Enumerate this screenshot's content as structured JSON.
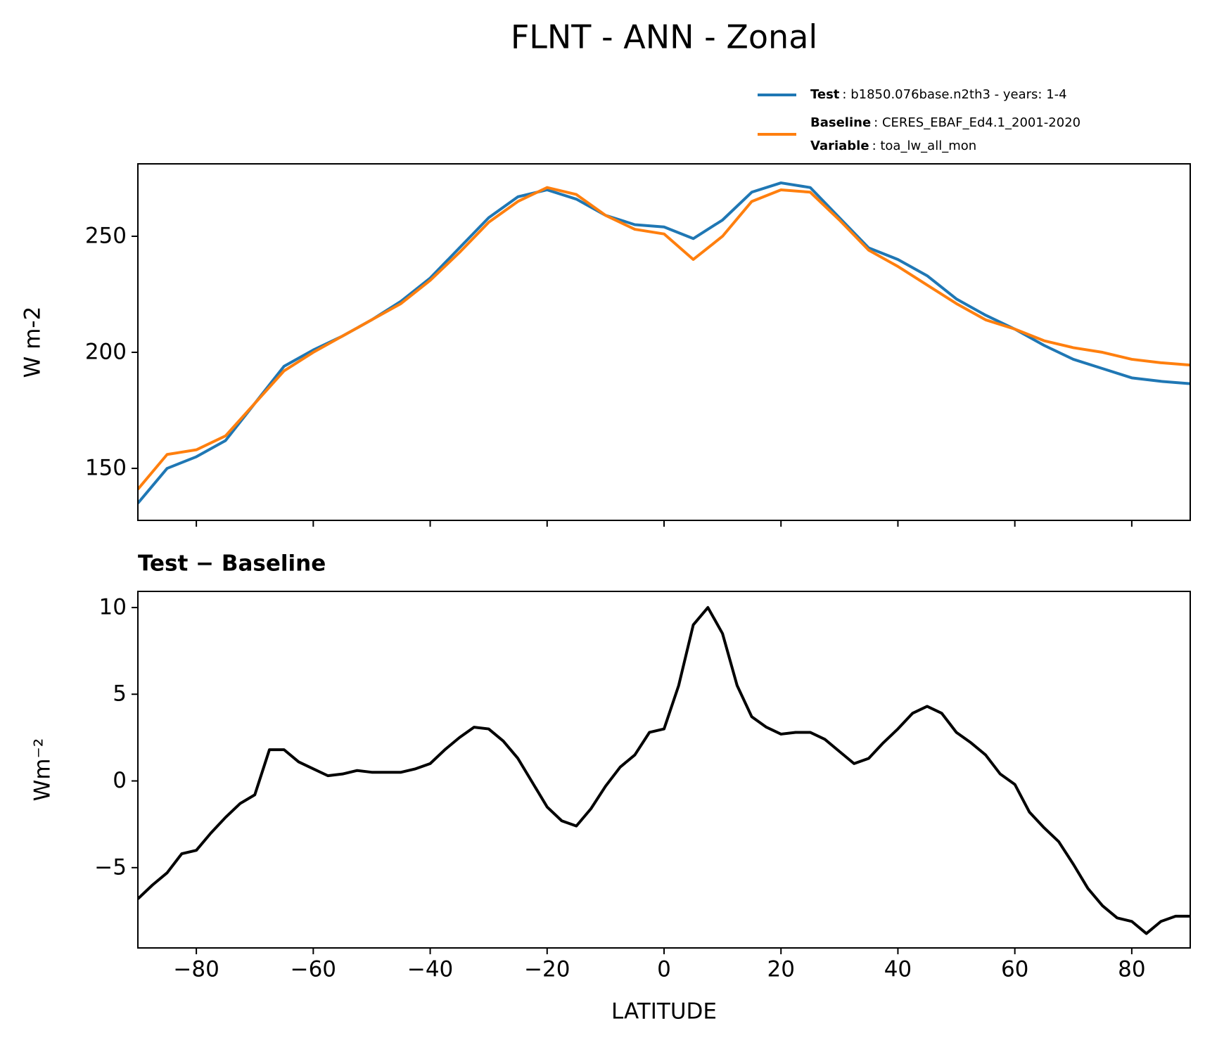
{
  "title": "FLNT - ANN - Zonal",
  "chart_data": [
    {
      "type": "line",
      "ylabel": "W m-2",
      "x": [
        -90,
        -85,
        -80,
        -75,
        -70,
        -65,
        -60,
        -55,
        -50,
        -45,
        -40,
        -35,
        -30,
        -25,
        -20,
        -15,
        -10,
        -5,
        0,
        5,
        10,
        15,
        20,
        25,
        30,
        35,
        40,
        45,
        50,
        55,
        60,
        65,
        70,
        75,
        80,
        85,
        90
      ],
      "series": [
        {
          "name": "Test",
          "detail": ": b1850.076base.n2th3 - years: 1-4",
          "color": "#1f77b4",
          "values": [
            135,
            150,
            155,
            162,
            178,
            194,
            201,
            207,
            214,
            222,
            232,
            245,
            258,
            267,
            270,
            266,
            259,
            255,
            254,
            249,
            257,
            269,
            273,
            271,
            258,
            245,
            240,
            233,
            223,
            216,
            210,
            203,
            197,
            193,
            189,
            187.5,
            186.5
          ]
        },
        {
          "name": "Baseline",
          "detail": ": CERES_EBAF_Ed4.1_2001-2020",
          "color": "#ff7f0e",
          "extra": {
            "name": "Variable",
            "detail": ": toa_lw_all_mon"
          },
          "values": [
            141,
            156,
            158,
            164,
            178,
            192,
            200,
            207,
            214,
            221,
            231,
            243,
            256,
            265,
            271,
            268,
            259,
            253,
            251,
            240,
            250,
            265,
            270,
            269,
            257,
            244,
            237,
            229,
            221,
            214,
            210,
            205,
            202,
            200,
            197,
            195.5,
            194.5
          ]
        }
      ],
      "xlim": [
        -90,
        90
      ],
      "xticks": [
        -80,
        -60,
        -40,
        -20,
        0,
        20,
        40,
        60,
        80
      ],
      "ylim": [
        127.6,
        281.2
      ],
      "yticks": [
        150,
        200,
        250
      ]
    },
    {
      "type": "line",
      "title": "Test − Baseline",
      "xlabel": "LATITUDE",
      "ylabel": "Wm⁻²",
      "x": [
        -90,
        -87.5,
        -85,
        -82.5,
        -80,
        -77.5,
        -75,
        -72.5,
        -70,
        -67.5,
        -65,
        -62.5,
        -60,
        -57.5,
        -55,
        -52.5,
        -50,
        -47.5,
        -45,
        -42.5,
        -40,
        -37.5,
        -35,
        -32.5,
        -30,
        -27.5,
        -25,
        -22.5,
        -20,
        -17.5,
        -15,
        -12.5,
        -10,
        -7.5,
        -5,
        -2.5,
        0,
        2.5,
        5,
        7.5,
        10,
        12.5,
        15,
        17.5,
        20,
        22.5,
        25,
        27.5,
        30,
        32.5,
        35,
        37.5,
        40,
        42.5,
        45,
        47.5,
        50,
        52.5,
        55,
        57.5,
        60,
        62.5,
        65,
        67.5,
        70,
        72.5,
        75,
        77.5,
        80,
        82.5,
        85,
        87.5,
        90
      ],
      "series": [
        {
          "color": "#000000",
          "values": [
            -6.8,
            -6.0,
            -5.3,
            -4.2,
            -4.0,
            -3.0,
            -2.1,
            -1.3,
            -0.8,
            1.8,
            1.8,
            1.1,
            0.7,
            0.3,
            0.4,
            0.6,
            0.5,
            0.5,
            0.5,
            0.7,
            1.0,
            1.8,
            2.5,
            3.1,
            3.0,
            2.3,
            1.3,
            -0.1,
            -1.5,
            -2.3,
            -2.6,
            -1.6,
            -0.3,
            0.8,
            1.5,
            2.8,
            3.0,
            5.5,
            9.0,
            10.0,
            8.5,
            5.5,
            3.7,
            3.1,
            2.7,
            2.8,
            2.8,
            2.4,
            1.7,
            1.0,
            1.3,
            2.2,
            3.0,
            3.9,
            4.3,
            3.9,
            2.8,
            2.2,
            1.5,
            0.4,
            -0.2,
            -1.8,
            -2.7,
            -3.5,
            -4.8,
            -6.2,
            -7.2,
            -7.9,
            -8.1,
            -8.8,
            -8.1,
            -7.8,
            -7.8
          ]
        }
      ],
      "xlim": [
        -90,
        90
      ],
      "xticks": [
        {
          "value": -80,
          "label": "−80"
        },
        {
          "value": -60,
          "label": "−60"
        },
        {
          "value": -40,
          "label": "−40"
        },
        {
          "value": -20,
          "label": "−20"
        },
        0,
        20,
        40,
        60,
        80
      ],
      "ylim": [
        -9.63,
        10.93
      ],
      "yticks": [
        {
          "value": -5,
          "label": "−5"
        },
        0,
        5,
        10
      ]
    }
  ]
}
